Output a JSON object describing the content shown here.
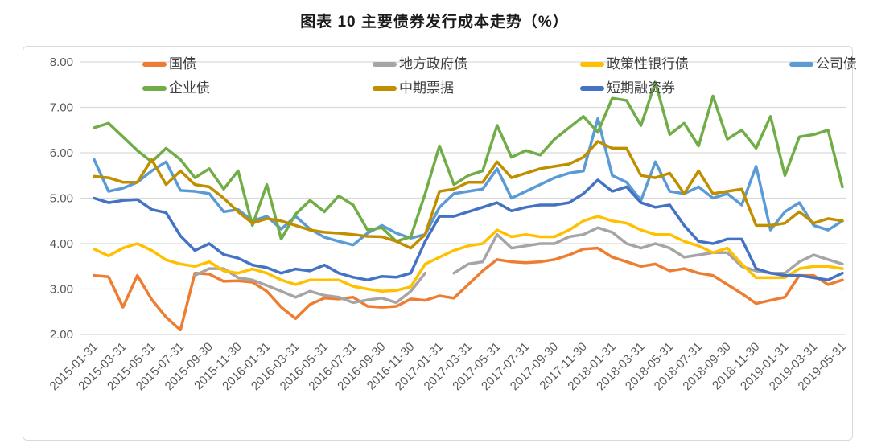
{
  "page_title": "图表 10 主要债券发行成本走势（%）",
  "chart_data": {
    "type": "line",
    "title": "图表 10 主要债券发行成本走势（%）",
    "ylabel": "",
    "xlabel": "",
    "ylim": [
      2.0,
      8.0
    ],
    "grid": "horizontal",
    "legend_position": "top-inside",
    "y_ticks": [
      "8.00",
      "7.00",
      "6.00",
      "5.00",
      "4.00",
      "3.00",
      "2.00"
    ],
    "y_tick_values": [
      8,
      7,
      6,
      5,
      4,
      3,
      2
    ],
    "x_tick_labels": [
      "2015-01-31",
      "2015-03-31",
      "2015-05-31",
      "2015-07-31",
      "2015-09-30",
      "2015-11-30",
      "2016-01-31",
      "2016-03-31",
      "2016-05-31",
      "2016-07-31",
      "2016-09-30",
      "2016-11-30",
      "2017-01-31",
      "2017-03-31",
      "2017-05-31",
      "2017-07-31",
      "2017-09-30",
      "2017-11-30",
      "2018-01-31",
      "2018-03-31",
      "2018-05-31",
      "2018-07-31",
      "2018-09-30",
      "2018-11-30",
      "2019-01-31",
      "2019-03-31",
      "2019-05-31"
    ],
    "points_per_tick": 2,
    "legend_rows": [
      [
        0,
        1,
        2,
        3
      ],
      [
        4,
        5,
        6
      ]
    ],
    "series": [
      {
        "name": "国债",
        "color": "#ED7D31",
        "values": [
          3.3,
          3.27,
          2.6,
          3.3,
          2.77,
          2.38,
          2.1,
          3.35,
          3.33,
          3.17,
          3.18,
          3.15,
          2.95,
          2.6,
          2.35,
          2.66,
          2.8,
          2.78,
          2.82,
          2.62,
          2.6,
          2.62,
          2.78,
          2.75,
          2.85,
          2.8,
          3.1,
          3.4,
          3.65,
          3.6,
          3.58,
          3.6,
          3.65,
          3.75,
          3.88,
          3.9,
          3.7,
          3.6,
          3.5,
          3.55,
          3.4,
          3.45,
          3.35,
          3.3,
          3.1,
          2.9,
          2.68,
          2.75,
          2.82,
          3.3,
          3.3,
          3.1,
          3.2
        ]
      },
      {
        "name": "地方政府债",
        "color": "#A5A5A5",
        "values": [
          null,
          null,
          null,
          null,
          null,
          null,
          null,
          3.3,
          3.45,
          3.45,
          3.25,
          3.2,
          3.08,
          2.95,
          2.82,
          2.95,
          2.86,
          2.82,
          2.7,
          2.76,
          2.8,
          2.7,
          2.95,
          3.35,
          null,
          3.35,
          3.55,
          3.6,
          4.2,
          3.9,
          3.95,
          4.0,
          4.0,
          4.15,
          4.2,
          4.35,
          4.25,
          4.0,
          3.9,
          4.0,
          3.9,
          3.7,
          3.75,
          3.8,
          3.8,
          3.5,
          3.4,
          3.35,
          3.35,
          3.6,
          3.75,
          3.65,
          3.55
        ]
      },
      {
        "name": "政策性银行债",
        "color": "#FFC000",
        "values": [
          3.88,
          3.73,
          3.9,
          4.0,
          3.85,
          3.64,
          3.55,
          3.5,
          3.6,
          3.4,
          3.35,
          3.44,
          3.35,
          3.2,
          3.1,
          3.2,
          3.2,
          3.2,
          3.06,
          3.0,
          2.95,
          2.97,
          3.05,
          3.55,
          3.7,
          3.85,
          3.95,
          4.0,
          4.3,
          4.15,
          4.2,
          4.15,
          4.15,
          4.3,
          4.5,
          4.6,
          4.5,
          4.45,
          4.3,
          4.2,
          4.2,
          4.05,
          3.95,
          3.8,
          3.9,
          3.55,
          3.25,
          3.25,
          3.25,
          3.45,
          3.5,
          3.5,
          3.45
        ]
      },
      {
        "name": "公司债",
        "color": "#5B9BD5",
        "values": [
          5.85,
          5.15,
          5.22,
          5.35,
          5.6,
          5.8,
          5.17,
          5.15,
          5.1,
          4.7,
          4.75,
          4.5,
          4.6,
          4.32,
          4.6,
          4.32,
          4.14,
          4.05,
          3.97,
          4.23,
          4.4,
          4.23,
          4.12,
          4.2,
          4.8,
          5.1,
          5.15,
          5.2,
          5.65,
          5.0,
          5.15,
          5.3,
          5.45,
          5.55,
          5.6,
          6.75,
          5.5,
          5.35,
          4.95,
          5.8,
          5.15,
          5.1,
          5.25,
          5.0,
          5.1,
          4.85,
          5.7,
          4.3,
          4.7,
          4.9,
          4.4,
          4.3,
          4.5
        ]
      },
      {
        "name": "企业债",
        "color": "#70AD47",
        "values": [
          6.55,
          6.65,
          6.35,
          6.05,
          5.8,
          6.1,
          5.85,
          5.45,
          5.65,
          5.2,
          5.6,
          4.4,
          5.3,
          4.1,
          4.65,
          4.95,
          4.7,
          5.05,
          4.85,
          4.3,
          4.35,
          4.05,
          4.15,
          5.1,
          6.15,
          5.3,
          5.5,
          5.6,
          6.6,
          5.9,
          6.05,
          5.95,
          6.3,
          6.55,
          6.8,
          6.45,
          7.2,
          7.15,
          6.6,
          7.55,
          6.4,
          6.65,
          6.15,
          7.25,
          6.3,
          6.5,
          6.1,
          6.8,
          5.5,
          6.35,
          6.4,
          6.5,
          5.25
        ]
      },
      {
        "name": "中期票据",
        "color": "#BF8F00",
        "values": [
          5.48,
          5.45,
          5.35,
          5.35,
          5.85,
          5.3,
          5.6,
          5.3,
          5.25,
          5.0,
          4.7,
          4.45,
          4.55,
          4.5,
          4.4,
          4.3,
          4.25,
          4.23,
          4.2,
          4.16,
          4.15,
          4.05,
          3.9,
          4.2,
          5.15,
          5.2,
          5.35,
          5.35,
          5.8,
          5.45,
          5.55,
          5.65,
          5.7,
          5.75,
          5.9,
          6.25,
          6.1,
          6.1,
          5.5,
          5.45,
          5.55,
          5.1,
          5.6,
          5.1,
          5.15,
          5.2,
          4.4,
          4.4,
          4.45,
          4.7,
          4.45,
          4.55,
          4.5
        ]
      },
      {
        "name": "短期融资券",
        "color": "#4472C4",
        "values": [
          5.0,
          4.9,
          4.95,
          4.97,
          4.75,
          4.68,
          4.17,
          3.85,
          4.0,
          3.76,
          3.68,
          3.53,
          3.47,
          3.35,
          3.44,
          3.4,
          3.53,
          3.35,
          3.26,
          3.2,
          3.28,
          3.26,
          3.35,
          4.05,
          4.6,
          4.6,
          4.7,
          4.8,
          4.9,
          4.72,
          4.8,
          4.85,
          4.85,
          4.9,
          5.1,
          5.4,
          5.15,
          5.25,
          4.9,
          4.8,
          4.85,
          4.4,
          4.05,
          4.0,
          4.1,
          4.1,
          3.45,
          3.35,
          3.3,
          3.3,
          3.25,
          3.2,
          3.35
        ]
      }
    ],
    "axis_text_color": "#595959",
    "gridline_color": "#d9d9d9",
    "title_color": "#1a1a1a"
  }
}
